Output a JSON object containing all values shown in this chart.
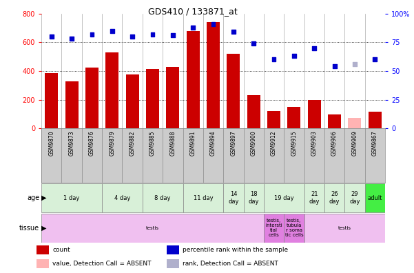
{
  "title": "GDS410 / 133871_at",
  "samples": [
    "GSM9870",
    "GSM9873",
    "GSM9876",
    "GSM9879",
    "GSM9882",
    "GSM9885",
    "GSM9888",
    "GSM9891",
    "GSM9894",
    "GSM9897",
    "GSM9900",
    "GSM9912",
    "GSM9915",
    "GSM9903",
    "GSM9906",
    "GSM9909",
    "GSM9867"
  ],
  "counts": [
    385,
    330,
    425,
    530,
    375,
    415,
    430,
    680,
    740,
    520,
    230,
    120,
    150,
    200,
    95,
    75,
    115
  ],
  "absent_count_indices": [
    15
  ],
  "percentile_ranks": [
    80,
    78,
    82,
    85,
    80,
    82,
    81,
    88,
    91,
    84,
    74,
    60,
    63,
    70,
    54,
    56,
    60
  ],
  "absent_rank_indices": [
    15
  ],
  "bar_color": "#cc0000",
  "bar_absent_color": "#ffb3b3",
  "dot_color": "#0000cc",
  "dot_absent_color": "#b0b0cc",
  "age_groups": [
    {
      "label": "1 day",
      "start": 0,
      "end": 2,
      "color": "#d8f0d8"
    },
    {
      "label": "4 day",
      "start": 3,
      "end": 4,
      "color": "#d8f0d8"
    },
    {
      "label": "8 day",
      "start": 5,
      "end": 6,
      "color": "#d8f0d8"
    },
    {
      "label": "11 day",
      "start": 7,
      "end": 8,
      "color": "#d8f0d8"
    },
    {
      "label": "14\nday",
      "start": 9,
      "end": 9,
      "color": "#d8f0d8"
    },
    {
      "label": "18\nday",
      "start": 10,
      "end": 10,
      "color": "#d8f0d8"
    },
    {
      "label": "19 day",
      "start": 11,
      "end": 12,
      "color": "#d8f0d8"
    },
    {
      "label": "21\nday",
      "start": 13,
      "end": 13,
      "color": "#d8f0d8"
    },
    {
      "label": "26\nday",
      "start": 14,
      "end": 14,
      "color": "#d8f0d8"
    },
    {
      "label": "29\nday",
      "start": 15,
      "end": 15,
      "color": "#d8f0d8"
    },
    {
      "label": "adult",
      "start": 16,
      "end": 16,
      "color": "#44ee44"
    }
  ],
  "tissue_groups": [
    {
      "label": "testis",
      "start": 0,
      "end": 10,
      "color": "#f0c0f0"
    },
    {
      "label": "testis,\nintersti\ntial\ncells",
      "start": 11,
      "end": 11,
      "color": "#e080e0"
    },
    {
      "label": "testis,\ntubula\nr soma\ntic cells",
      "start": 12,
      "end": 12,
      "color": "#e080e0"
    },
    {
      "label": "testis",
      "start": 13,
      "end": 16,
      "color": "#f0c0f0"
    }
  ],
  "ylim_left": [
    0,
    800
  ],
  "ylim_right": [
    0,
    100
  ],
  "yticks_left": [
    0,
    200,
    400,
    600,
    800
  ],
  "yticks_right": [
    0,
    25,
    50,
    75,
    100
  ],
  "right_tick_labels": [
    "0",
    "25",
    "50",
    "75",
    "100%"
  ],
  "grid_values": [
    200,
    400,
    600
  ],
  "legend_items": [
    {
      "color": "#cc0000",
      "type": "rect",
      "label": "count"
    },
    {
      "color": "#0000cc",
      "type": "rect",
      "label": "percentile rank within the sample"
    },
    {
      "color": "#ffb3b3",
      "type": "rect",
      "label": "value, Detection Call = ABSENT"
    },
    {
      "color": "#b0b0cc",
      "type": "rect",
      "label": "rank, Detection Call = ABSENT"
    }
  ]
}
